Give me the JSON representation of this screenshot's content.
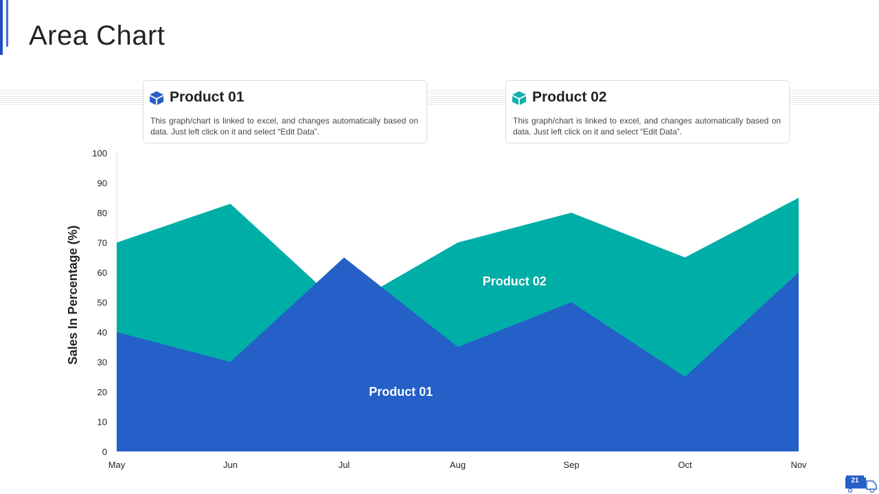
{
  "slide": {
    "title": "Area Chart",
    "page_number": "21"
  },
  "cards": [
    {
      "title": "Product 01",
      "text": "This graph/chart is linked to excel, and changes automatically based on data. Just left click on it and select “Edit Data”.",
      "icon": "box-icon",
      "color": "#2a5fc9"
    },
    {
      "title": "Product 02",
      "text": "This graph/chart is linked to excel, and changes automatically based on data. Just left click on it and select “Edit Data”.",
      "icon": "box-icon",
      "color": "#12b0ab"
    }
  ],
  "chart_data": {
    "type": "area",
    "categories": [
      "May",
      "Jun",
      "Jul",
      "Aug",
      "Sep",
      "Oct",
      "Nov"
    ],
    "series": [
      {
        "name": "Product 02",
        "values": [
          70,
          83,
          48,
          70,
          80,
          65,
          85
        ],
        "color": "#00aea8"
      },
      {
        "name": "Product 01",
        "values": [
          40,
          30,
          65,
          35,
          50,
          25,
          60
        ],
        "color": "#2460c8"
      }
    ],
    "ylabel": "Sales In Percentage (%)",
    "xlabel": "",
    "ylim": [
      0,
      100
    ],
    "yticks": [
      0,
      10,
      20,
      30,
      40,
      50,
      60,
      70,
      80,
      90,
      100
    ],
    "grid": false
  }
}
